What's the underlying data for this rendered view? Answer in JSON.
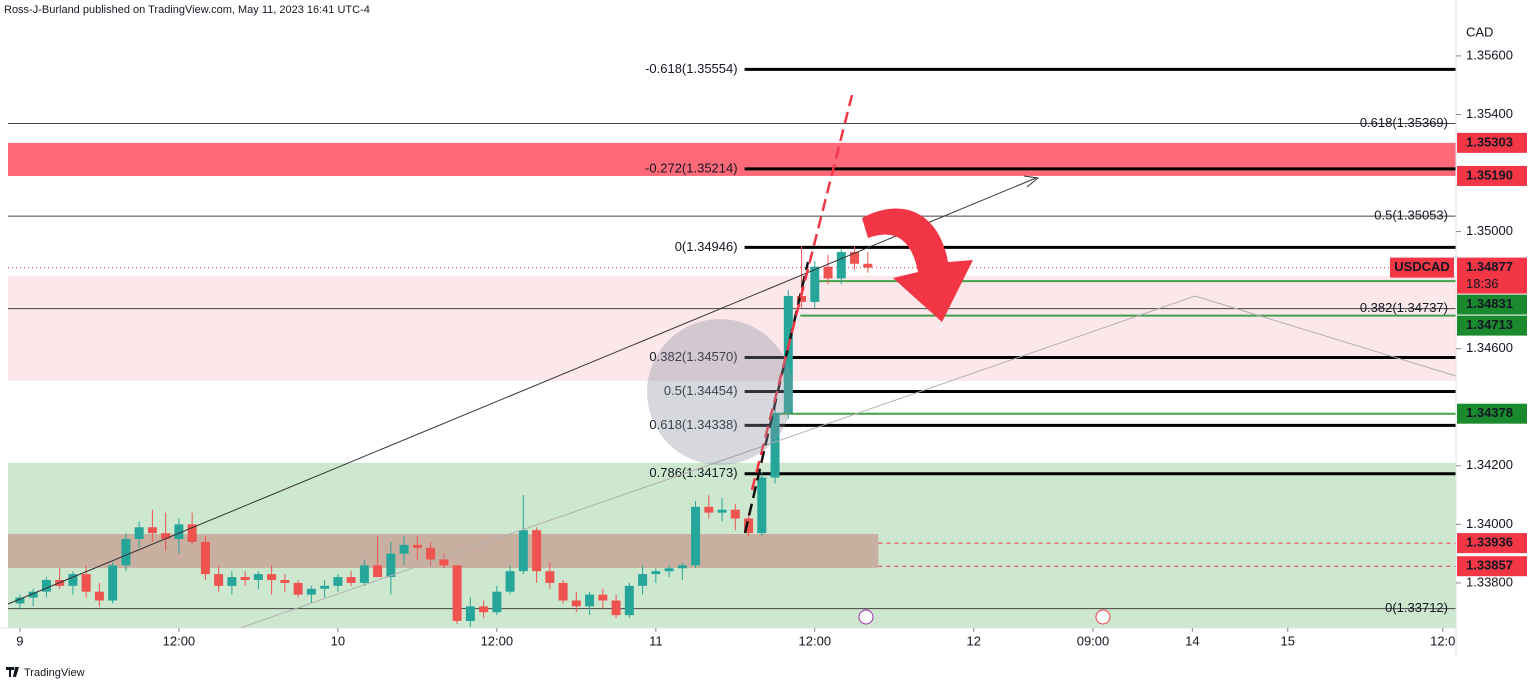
{
  "header": "Ross-J-Burland published on TradingView.com, May 11, 2023 16:41 UTC-4",
  "footer": "TradingView",
  "chart_data": {
    "type": "candlestick",
    "currency": "CAD",
    "up_color": "#26a69a",
    "down_color": "#ef5350",
    "xlim": [
      -0.9,
      108.4
    ],
    "ylim": [
      1.33646,
      1.35791
    ],
    "xticks": [
      {
        "value": 0,
        "label": "9"
      },
      {
        "value": 12,
        "label": "12:00"
      },
      {
        "value": 24,
        "label": "10"
      },
      {
        "value": 36,
        "label": "12:00"
      },
      {
        "value": 48,
        "label": "11"
      },
      {
        "value": 60,
        "label": "12:00"
      },
      {
        "value": 72,
        "label": "12"
      },
      {
        "value": 81,
        "label": "09:00"
      },
      {
        "value": 88.5,
        "label": "14"
      },
      {
        "value": 95.7,
        "label": "15"
      },
      {
        "value": 107.4,
        "label": "12:0"
      }
    ],
    "yticks": [
      {
        "value": 1.356,
        "label": "1.35600"
      },
      {
        "value": 1.354,
        "label": "1.35400"
      },
      {
        "value": 1.35,
        "label": "1.35000"
      },
      {
        "value": 1.346,
        "label": "1.34600"
      },
      {
        "value": 1.342,
        "label": "1.34200"
      },
      {
        "value": 1.34,
        "label": "1.34000"
      },
      {
        "value": 1.338,
        "label": "1.33800"
      }
    ],
    "x": [
      0,
      1,
      2,
      3,
      4,
      5,
      6,
      7,
      8,
      9,
      10,
      11,
      12,
      13,
      14,
      15,
      16,
      17,
      18,
      19,
      20,
      21,
      22,
      23,
      24,
      25,
      26,
      27,
      28,
      29,
      30,
      31,
      32,
      33,
      34,
      35,
      36,
      37,
      38,
      39,
      40,
      41,
      42,
      43,
      44,
      45,
      46,
      47,
      48,
      49,
      50,
      51,
      52,
      53,
      54,
      55,
      56,
      57,
      58,
      59,
      60,
      61,
      62,
      63,
      64
    ],
    "open": [
      1.3373,
      1.3375,
      1.3377,
      1.3381,
      1.3379,
      1.3383,
      1.3377,
      1.3374,
      1.3386,
      1.3395,
      1.3399,
      1.3397,
      1.3395,
      1.34,
      1.3394,
      1.3383,
      1.3379,
      1.3382,
      1.3381,
      1.3383,
      1.3381,
      1.338,
      1.3376,
      1.3378,
      1.3379,
      1.3382,
      1.338,
      1.3386,
      1.3382,
      1.339,
      1.3393,
      1.3392,
      1.3388,
      1.3386,
      1.3367,
      1.3372,
      1.337,
      1.3377,
      1.3384,
      1.3398,
      1.3384,
      1.338,
      1.3374,
      1.3372,
      1.3376,
      1.3374,
      1.3369,
      1.3379,
      1.3383,
      1.3384,
      1.3385,
      1.3386,
      1.3406,
      1.3404,
      1.3405,
      1.3402,
      1.3397,
      1.3416,
      1.3438,
      1.3478,
      1.3476,
      1.3488,
      1.3484,
      1.3493,
      1.3489
    ],
    "high": [
      1.3376,
      1.3378,
      1.3382,
      1.3385,
      1.3384,
      1.3386,
      1.338,
      1.3387,
      1.3397,
      1.3401,
      1.3405,
      1.3404,
      1.3402,
      1.3404,
      1.3396,
      1.3386,
      1.3384,
      1.3384,
      1.3384,
      1.3386,
      1.3383,
      1.3381,
      1.3379,
      1.3381,
      1.3383,
      1.3384,
      1.3388,
      1.3396,
      1.3394,
      1.3396,
      1.3396,
      1.3394,
      1.339,
      1.3386,
      1.3375,
      1.3374,
      1.3379,
      1.3386,
      1.341,
      1.3399,
      1.3387,
      1.3381,
      1.3377,
      1.3377,
      1.3378,
      1.3376,
      1.338,
      1.3386,
      1.3385,
      1.3386,
      1.3387,
      1.3408,
      1.341,
      1.3409,
      1.3407,
      1.3404,
      1.3418,
      1.344,
      1.348,
      1.3495,
      1.349,
      1.3492,
      1.3494,
      1.3495,
      1.3493
    ],
    "low": [
      1.3371,
      1.3372,
      1.3375,
      1.3378,
      1.3376,
      1.3375,
      1.3372,
      1.3373,
      1.3384,
      1.3392,
      1.3394,
      1.3391,
      1.339,
      1.3393,
      1.3381,
      1.3377,
      1.3376,
      1.3379,
      1.3378,
      1.3376,
      1.3377,
      1.3375,
      1.3373,
      1.3375,
      1.3377,
      1.3379,
      1.3379,
      1.3382,
      1.3376,
      1.3386,
      1.3388,
      1.3386,
      1.3385,
      1.3366,
      1.3365,
      1.3368,
      1.3369,
      1.3376,
      1.3383,
      1.338,
      1.3378,
      1.3373,
      1.337,
      1.3369,
      1.3371,
      1.3368,
      1.3368,
      1.3376,
      1.338,
      1.3382,
      1.3381,
      1.3385,
      1.3402,
      1.3401,
      1.3398,
      1.3396,
      1.3396,
      1.3414,
      1.3436,
      1.3474,
      1.3474,
      1.3482,
      1.3482,
      1.3487,
      1.3486
    ],
    "close": [
      1.3375,
      1.3377,
      1.3381,
      1.3379,
      1.3383,
      1.3377,
      1.3374,
      1.3386,
      1.3395,
      1.3399,
      1.3397,
      1.3395,
      1.34,
      1.3394,
      1.3383,
      1.3379,
      1.3382,
      1.3381,
      1.3383,
      1.3381,
      1.338,
      1.3376,
      1.3378,
      1.3379,
      1.3382,
      1.338,
      1.3386,
      1.3382,
      1.339,
      1.3393,
      1.3392,
      1.3388,
      1.3386,
      1.3367,
      1.3372,
      1.337,
      1.3377,
      1.3384,
      1.3398,
      1.3384,
      1.338,
      1.3374,
      1.3372,
      1.3376,
      1.3374,
      1.3369,
      1.3379,
      1.3383,
      1.3384,
      1.3385,
      1.3386,
      1.3406,
      1.3404,
      1.3405,
      1.3402,
      1.3397,
      1.3416,
      1.3438,
      1.3478,
      1.3476,
      1.3488,
      1.3484,
      1.3493,
      1.3489,
      1.34877
    ],
    "zones": [
      {
        "low": 1.33646,
        "high": 1.3421,
        "x": [
          -0.9,
          108.4
        ],
        "color": "#c8e6c9"
      },
      {
        "low": 1.3449,
        "high": 1.34849,
        "x": [
          -0.9,
          108.4
        ],
        "color": "#fce4e8"
      },
      {
        "low": 1.33851,
        "high": 1.33967,
        "x": [
          -0.9,
          64.8
        ],
        "color": "#c9a99a"
      },
      {
        "low": 1.3519,
        "high": 1.35303,
        "x": [
          -0.9,
          108.4
        ],
        "color": "#ff5a6a"
      }
    ],
    "levels": [
      {
        "label": "-0.618(1.35554)",
        "value": 1.35554,
        "from": 54.7,
        "style": "thick"
      },
      {
        "label": "0.618(1.35369)",
        "value": 1.35369,
        "from": -0.9,
        "style": "thin"
      },
      {
        "label": "-0.272(1.35214)",
        "value": 1.35214,
        "from": 54.7,
        "style": "thick"
      },
      {
        "label": "0.5(1.35053)",
        "value": 1.35053,
        "from": -0.9,
        "style": "thin"
      },
      {
        "label": "0(1.34946)",
        "value": 1.34946,
        "from": 54.7,
        "style": "thick"
      },
      {
        "label": "0.382(1.34737)",
        "value": 1.34737,
        "from": -0.9,
        "style": "thin"
      },
      {
        "label": "0.382(1.34570)",
        "value": 1.3457,
        "from": 54.7,
        "style": "thick"
      },
      {
        "label": "0.5(1.34454)",
        "value": 1.34454,
        "from": 54.7,
        "style": "thick"
      },
      {
        "label": "0.618(1.34338)",
        "value": 1.34338,
        "from": 54.7,
        "style": "thick"
      },
      {
        "label": "0.786(1.34173)",
        "value": 1.34173,
        "from": 54.7,
        "style": "thick"
      },
      {
        "label": "0(1.33712)",
        "value": 1.33712,
        "from": -0.9,
        "style": "thin"
      }
    ],
    "tags": [
      {
        "label": "1.35303",
        "value": 1.35303,
        "color": "#f23645"
      },
      {
        "label": "1.35190",
        "value": 1.3519,
        "color": "#f23645"
      },
      {
        "label": "1.34877",
        "value": 1.34877,
        "color": "#f23645",
        "symbol": "USDCAD",
        "countdown": "18:36",
        "line": "dotted",
        "from": -0.9
      },
      {
        "label": "1.34831",
        "value": 1.34831,
        "color": "#1b8a2f",
        "line": "solid",
        "from": 59.7
      },
      {
        "label": "1.34713",
        "value": 1.34713,
        "color": "#1b8a2f",
        "line": "solid",
        "from": 58.9
      },
      {
        "label": "1.34378",
        "value": 1.34378,
        "color": "#1b8a2f",
        "line": "solid",
        "from": 56.6
      },
      {
        "label": "1.33936",
        "value": 1.33936,
        "color": "#f23645",
        "line": "dashed",
        "from": 64.8
      },
      {
        "label": "1.33857",
        "value": 1.33857,
        "color": "#f23645",
        "line": "dashed",
        "from": 64.8
      }
    ]
  }
}
